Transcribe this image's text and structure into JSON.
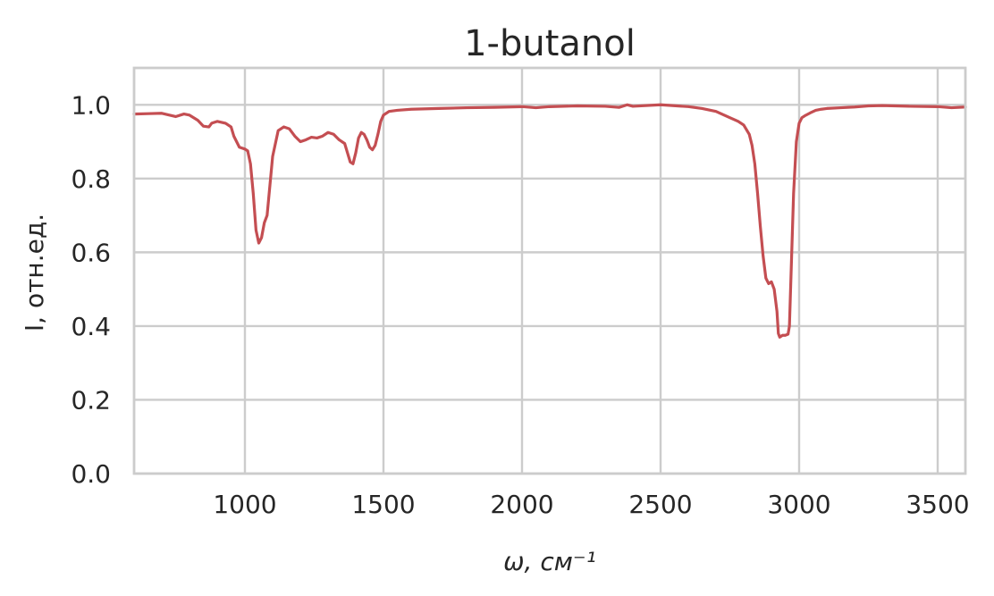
{
  "chart_data": {
    "type": "line",
    "title": "1-butanol",
    "xlabel": "ω, см⁻¹",
    "ylabel": "I, отн.ед.",
    "xlim": [
      600,
      3600
    ],
    "ylim": [
      0.0,
      1.1
    ],
    "xticks": [
      1000,
      1500,
      2000,
      2500,
      3000,
      3500
    ],
    "yticks": [
      0.0,
      0.2,
      0.4,
      0.6,
      0.8,
      1.0
    ],
    "xtick_labels": [
      "1000",
      "1500",
      "2000",
      "2500",
      "3000",
      "3500"
    ],
    "ytick_labels": [
      "0.0",
      "0.2",
      "0.4",
      "0.6",
      "0.8",
      "1.0"
    ],
    "grid": true,
    "series": [
      {
        "color": "#c44e52",
        "x": [
          600,
          650,
          700,
          750,
          780,
          800,
          830,
          850,
          870,
          880,
          900,
          930,
          950,
          960,
          980,
          1000,
          1010,
          1020,
          1030,
          1040,
          1050,
          1060,
          1070,
          1080,
          1090,
          1100,
          1120,
          1140,
          1160,
          1180,
          1200,
          1220,
          1240,
          1260,
          1280,
          1300,
          1320,
          1340,
          1360,
          1370,
          1380,
          1390,
          1400,
          1410,
          1420,
          1430,
          1440,
          1450,
          1460,
          1470,
          1480,
          1490,
          1500,
          1520,
          1550,
          1600,
          1700,
          1800,
          1900,
          2000,
          2050,
          2100,
          2200,
          2300,
          2350,
          2380,
          2400,
          2500,
          2600,
          2650,
          2700,
          2750,
          2780,
          2800,
          2820,
          2830,
          2840,
          2850,
          2860,
          2870,
          2880,
          2890,
          2900,
          2910,
          2920,
          2925,
          2930,
          2940,
          2950,
          2960,
          2965,
          2970,
          2980,
          2990,
          3000,
          3010,
          3020,
          3040,
          3060,
          3080,
          3100,
          3150,
          3200,
          3250,
          3300,
          3400,
          3500,
          3550,
          3600
        ],
        "y": [
          0.975,
          0.976,
          0.977,
          0.968,
          0.975,
          0.972,
          0.958,
          0.942,
          0.94,
          0.95,
          0.955,
          0.95,
          0.94,
          0.915,
          0.885,
          0.88,
          0.875,
          0.84,
          0.76,
          0.66,
          0.625,
          0.64,
          0.68,
          0.7,
          0.78,
          0.86,
          0.93,
          0.94,
          0.935,
          0.915,
          0.9,
          0.905,
          0.912,
          0.91,
          0.915,
          0.925,
          0.92,
          0.905,
          0.895,
          0.87,
          0.845,
          0.84,
          0.87,
          0.91,
          0.925,
          0.92,
          0.905,
          0.885,
          0.878,
          0.89,
          0.92,
          0.955,
          0.972,
          0.982,
          0.985,
          0.988,
          0.99,
          0.992,
          0.993,
          0.995,
          0.992,
          0.995,
          0.997,
          0.996,
          0.993,
          1.0,
          0.996,
          1.0,
          0.995,
          0.99,
          0.982,
          0.965,
          0.955,
          0.945,
          0.92,
          0.89,
          0.84,
          0.76,
          0.67,
          0.59,
          0.53,
          0.515,
          0.52,
          0.5,
          0.44,
          0.38,
          0.37,
          0.375,
          0.375,
          0.378,
          0.4,
          0.52,
          0.76,
          0.9,
          0.95,
          0.965,
          0.97,
          0.978,
          0.985,
          0.988,
          0.99,
          0.992,
          0.994,
          0.997,
          0.998,
          0.996,
          0.995,
          0.992,
          0.994
        ]
      }
    ]
  }
}
